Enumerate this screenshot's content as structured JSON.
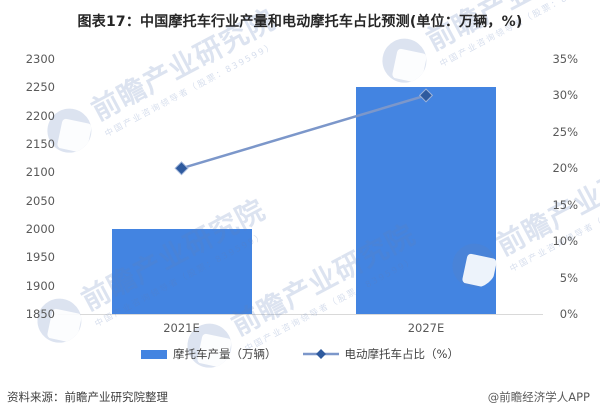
{
  "title": "图表17：中国摩托车行业产量和电动摩托车占比预测(单位：万辆，%)",
  "chart_data": {
    "type": "bar",
    "combo": "bar + line, dual axis",
    "categories": [
      "2021E",
      "2027E"
    ],
    "series": [
      {
        "name": "摩托车产量（万辆）",
        "type": "bar",
        "axis": "left",
        "values": [
          2000,
          2250
        ],
        "color": "#4384E1"
      },
      {
        "name": "电动摩托车占比（%）",
        "type": "line",
        "axis": "right",
        "values": [
          20,
          30
        ],
        "color": "#7C97CA",
        "marker": "diamond",
        "marker_color": "#2E5A9E",
        "marker_stroke": "#9FB4D9"
      }
    ],
    "left_axis": {
      "min": 1850,
      "max": 2300,
      "step": 50,
      "tick_labels": [
        "2300",
        "2250",
        "2200",
        "2150",
        "2100",
        "2050",
        "2000",
        "1950",
        "1900",
        "1850"
      ]
    },
    "right_axis": {
      "min": 0,
      "max": 35,
      "step": 5,
      "tick_labels": [
        "35%",
        "30%",
        "25%",
        "20%",
        "15%",
        "10%",
        "5%",
        "0%"
      ]
    },
    "grid": false,
    "legend_position": "bottom"
  },
  "footer": {
    "source": "资料来源：前瞻产业研究院整理",
    "credit": "@前瞻经济学人APP"
  },
  "watermark": {
    "logo": "qianzhan-logo",
    "text": "前瞻产业研究院",
    "subtext": "中国产业咨询领导者（股票：839599）"
  },
  "colors": {
    "bar": "#4384E1",
    "line": "#7C97CA",
    "marker": "#2E5A9E",
    "axis_text": "#595959",
    "axis_line": "#D9D9D9",
    "title_text": "#262626"
  }
}
